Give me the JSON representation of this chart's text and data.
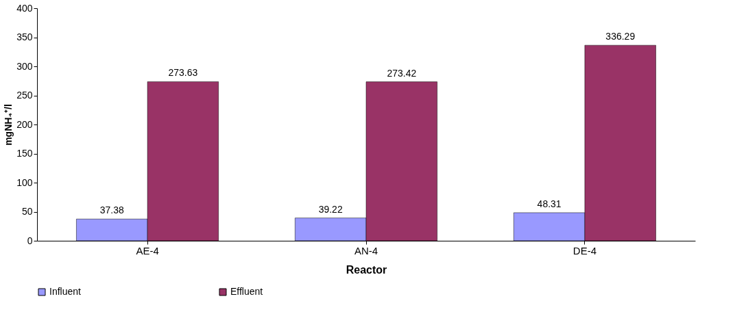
{
  "chart_data": {
    "type": "bar",
    "xlabel": "Reactor",
    "ylabel": "mgNH₄⁺/l",
    "categories": [
      "AE-4",
      "AN-4",
      "DE-4"
    ],
    "series": [
      {
        "name": "Influent",
        "color": "#9999ff",
        "values": [
          37.38,
          39.22,
          48.31
        ]
      },
      {
        "name": "Effluent",
        "color": "#993366",
        "values": [
          273.63,
          273.42,
          336.29
        ]
      }
    ],
    "ylim": [
      0,
      400
    ],
    "yticks": [
      0,
      50,
      100,
      150,
      200,
      250,
      300,
      350,
      400
    ],
    "grid": false,
    "legend": "bottom",
    "data_labels": true
  }
}
